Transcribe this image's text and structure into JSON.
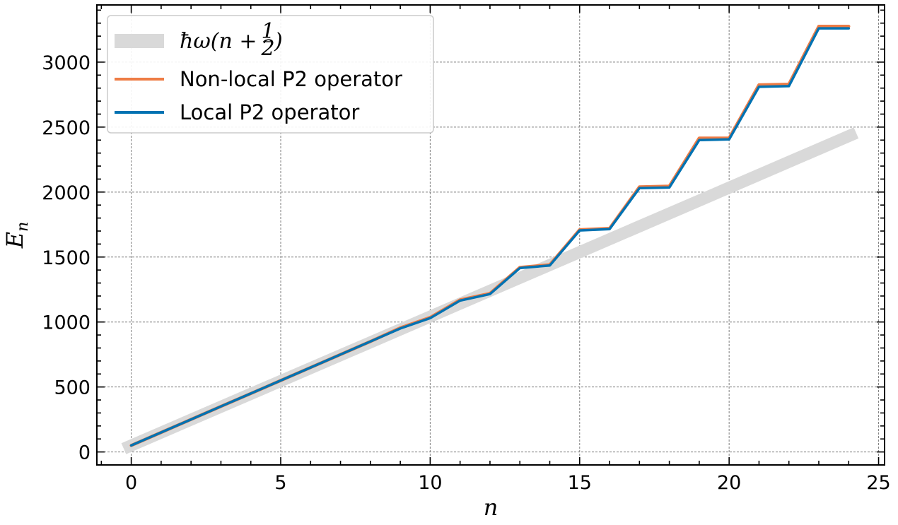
{
  "chart_data": {
    "type": "line",
    "title": "",
    "xlabel": "n",
    "ylabel": "E",
    "ylabel_sub": "n",
    "xlim": [
      -1.15,
      25.2
    ],
    "ylim": [
      -100,
      3440
    ],
    "xticks": [
      0,
      5,
      10,
      15,
      20,
      25
    ],
    "xtick_labels": [
      "0",
      "5",
      "10",
      "15",
      "20",
      "25"
    ],
    "yticks": [
      0,
      500,
      1000,
      1500,
      2000,
      2500,
      3000
    ],
    "ytick_labels": [
      "0",
      "500",
      "1000",
      "1500",
      "2000",
      "2500",
      "3000"
    ],
    "grid": true,
    "legend_position": "top-left",
    "series": [
      {
        "name": "ħω(n + 1/2)",
        "legend_math": {
          "prefix": "ħω(",
          "var": "n",
          "plus": "+",
          "num": "1",
          "den": "2",
          "suffix": ")"
        },
        "color": "#d9d9d9",
        "x": [
          -0.25,
          24.25
        ],
        "y": [
          25,
          2455
        ]
      },
      {
        "name": "Non-local P2 operator",
        "color": "#ee7c45",
        "x": [
          0,
          1,
          2,
          3,
          4,
          5,
          6,
          7,
          8,
          9,
          10,
          11,
          12,
          13,
          14,
          15,
          16,
          17,
          18,
          19,
          20,
          21,
          22,
          23,
          24
        ],
        "y": [
          50,
          150,
          250,
          350,
          450,
          550,
          650,
          750,
          850,
          955,
          1035,
          1170,
          1220,
          1420,
          1440,
          1710,
          1720,
          2040,
          2045,
          2415,
          2415,
          2825,
          2830,
          3275,
          3275
        ]
      },
      {
        "name": "Local P2 operator",
        "color": "#0072b2",
        "x": [
          0,
          1,
          2,
          3,
          4,
          5,
          6,
          7,
          8,
          9,
          10,
          11,
          12,
          13,
          14,
          15,
          16,
          17,
          18,
          19,
          20,
          21,
          22,
          23,
          24
        ],
        "y": [
          50,
          150,
          250,
          350,
          450,
          550,
          650,
          750,
          850,
          950,
          1030,
          1165,
          1215,
          1415,
          1435,
          1705,
          1715,
          2030,
          2035,
          2400,
          2405,
          2810,
          2815,
          3260,
          3260
        ]
      }
    ]
  }
}
